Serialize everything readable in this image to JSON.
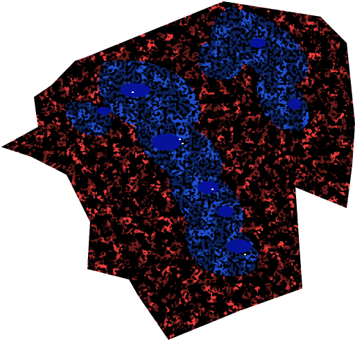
{
  "map": {
    "type": "classified-raster-region",
    "classes": [
      {
        "name": "class-high",
        "color": "#ee3d3d"
      },
      {
        "name": "class-medium",
        "color": "#fbe10a"
      },
      {
        "name": "class-low",
        "color": "#1f4fd4"
      },
      {
        "name": "class-very-low",
        "color": "#07139a"
      },
      {
        "name": "class-none",
        "color": "#ffffff"
      }
    ],
    "background_color": "#ffffff"
  }
}
